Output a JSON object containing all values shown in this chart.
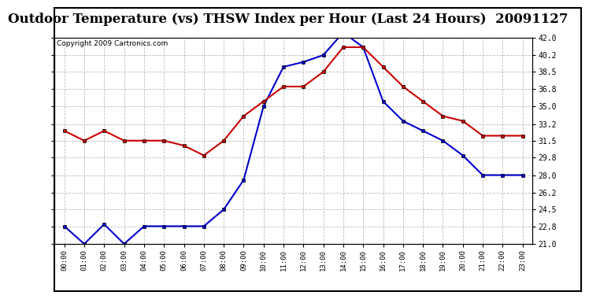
{
  "title": "Outdoor Temperature (vs) THSW Index per Hour (Last 24 Hours)  20091127",
  "copyright": "Copyright 2009 Cartronics.com",
  "hours": [
    "00:00",
    "01:00",
    "02:00",
    "03:00",
    "04:00",
    "05:00",
    "06:00",
    "07:00",
    "08:00",
    "09:00",
    "10:00",
    "11:00",
    "12:00",
    "13:00",
    "14:00",
    "15:00",
    "16:00",
    "17:00",
    "18:00",
    "19:00",
    "20:00",
    "21:00",
    "22:00",
    "23:00"
  ],
  "temp_red": [
    32.5,
    31.5,
    32.5,
    31.5,
    31.5,
    31.5,
    31.0,
    30.0,
    31.5,
    34.0,
    35.5,
    37.0,
    37.0,
    38.5,
    41.0,
    41.0,
    39.0,
    37.0,
    35.5,
    34.0,
    33.5,
    32.0,
    32.0,
    32.0
  ],
  "thsw_blue": [
    22.8,
    21.0,
    23.0,
    21.0,
    22.8,
    22.8,
    22.8,
    22.8,
    24.5,
    27.5,
    35.0,
    39.0,
    39.5,
    40.2,
    42.5,
    41.0,
    35.5,
    33.5,
    32.5,
    31.5,
    30.0,
    28.0,
    28.0,
    28.0
  ],
  "ymin": 21.0,
  "ymax": 42.0,
  "yticks": [
    21.0,
    22.8,
    24.5,
    26.2,
    28.0,
    29.8,
    31.5,
    33.2,
    35.0,
    36.8,
    38.5,
    40.2,
    42.0
  ],
  "red_color": "#cc0000",
  "blue_color": "#0000cc",
  "grid_color": "#bbbbbb",
  "background_color": "#ffffff",
  "title_fontsize": 12,
  "copyright_fontsize": 6.5
}
